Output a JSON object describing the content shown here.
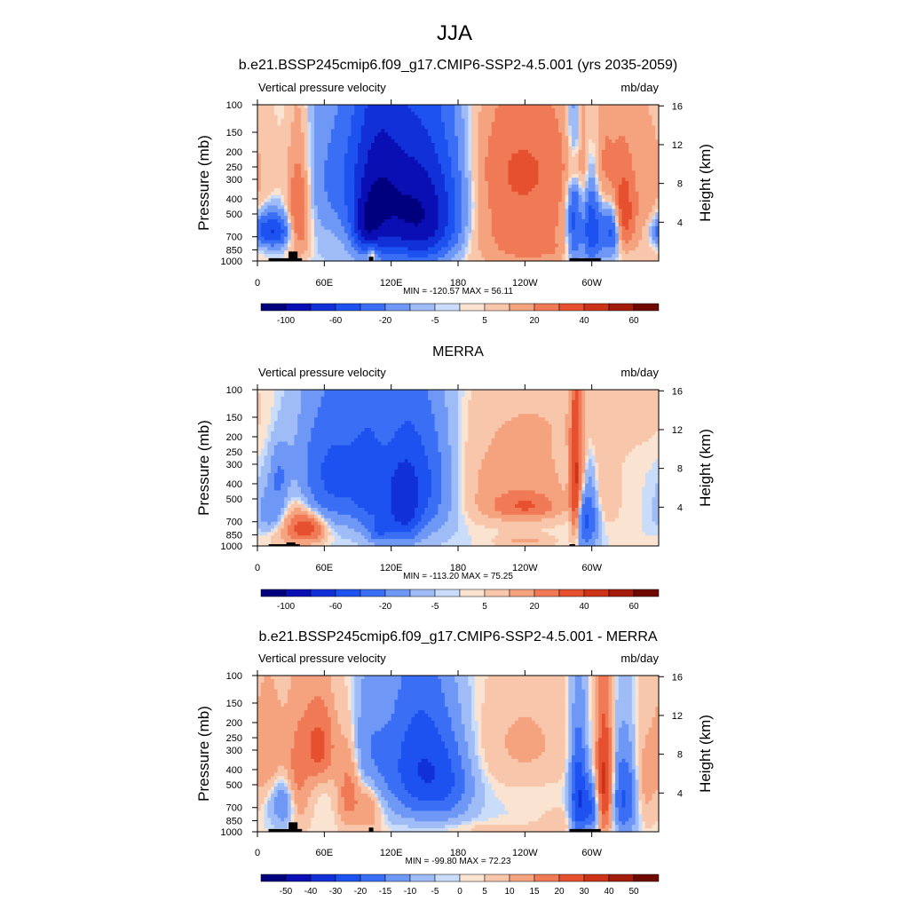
{
  "figure": {
    "season": "JJA",
    "colors": {
      "land": "#000000",
      "frame": "#000000",
      "scale_main": [
        "#00007f",
        "#0a0fb4",
        "#1230d8",
        "#1d52f0",
        "#3a6ff5",
        "#6f98f6",
        "#9fbcf7",
        "#c9dcfa",
        "#fbe3d2",
        "#f8c6ab",
        "#f5a27f",
        "#f17a56",
        "#e6502f",
        "#cc3318",
        "#a41c0c",
        "#6e0800"
      ],
      "scale_diff": [
        "#00007f",
        "#0a0fb4",
        "#1230d8",
        "#1d52f0",
        "#3a6ff5",
        "#6f98f6",
        "#9fbcf7",
        "#c9dcfa",
        "#fbe3d2",
        "#f8c6ab",
        "#f5a27f",
        "#f17a56",
        "#e6502f",
        "#cc3318",
        "#a41c0c",
        "#6e0800"
      ]
    }
  },
  "chart_data": [
    {
      "type": "heatmap",
      "title": "b.e21.BSSP245cmip6.f09_g17.CMIP6-SSP2-4.5.001 (yrs 2035-2059)",
      "left_label": "Vertical pressure velocity",
      "right_label": "mb/day",
      "ylabel": "Pressure (mb)",
      "y2label": "Height (km)",
      "x_ticks": [
        "0",
        "60E",
        "120E",
        "180",
        "120W",
        "60W"
      ],
      "x_tick_lon": [
        0,
        60,
        120,
        180,
        240,
        300
      ],
      "xlim": [
        0,
        360
      ],
      "y_ticks": [
        "100",
        "150",
        "200",
        "250",
        "300",
        "400",
        "500",
        "700",
        "850",
        "1000"
      ],
      "y_tick_values": [
        100,
        150,
        200,
        250,
        300,
        400,
        500,
        700,
        850,
        1000
      ],
      "ylim": [
        100,
        1000
      ],
      "y2_ticks": [
        "16",
        "12",
        "8",
        "4"
      ],
      "y2_tick_values": [
        16,
        12,
        8,
        4
      ],
      "stats": "MIN = -120.57  MAX =  56.11",
      "colorbar_labels": [
        "-100",
        "-60",
        "-20",
        "-5",
        "5",
        "20",
        "40",
        "60"
      ],
      "colorbar_label_slots": [
        1,
        3,
        5,
        7,
        9,
        11,
        13,
        15
      ],
      "color_levels": 16,
      "topography": [
        [
          10,
          40,
          960
        ],
        [
          28,
          36,
          870
        ],
        [
          100,
          104,
          940
        ],
        [
          280,
          308,
          960
        ]
      ],
      "features": [
        {
          "lon": 12,
          "p": 640,
          "dlon": 12,
          "dp": 110,
          "v": -50
        },
        {
          "lon": 37,
          "p": 500,
          "dlon": 7,
          "dp": 260,
          "v": 35
        },
        {
          "lon": 20,
          "p": 250,
          "dlon": 18,
          "dp": 120,
          "v": 3
        },
        {
          "lon": 60,
          "p": 520,
          "dlon": 22,
          "dp": 420,
          "v": -3
        },
        {
          "lon": 90,
          "p": 280,
          "dlon": 30,
          "dp": 200,
          "v": -22
        },
        {
          "lon": 98,
          "p": 600,
          "dlon": 8,
          "dp": 150,
          "v": -45
        },
        {
          "lon": 103,
          "p": 900,
          "dlon": 3,
          "dp": 80,
          "v": 25
        },
        {
          "lon": 108,
          "p": 400,
          "dlon": 14,
          "dp": 320,
          "v": -40
        },
        {
          "lon": 140,
          "p": 450,
          "dlon": 28,
          "dp": 300,
          "v": -70
        },
        {
          "lon": 150,
          "p": 650,
          "dlon": 18,
          "dp": 220,
          "v": -30
        },
        {
          "lon": 168,
          "p": 250,
          "dlon": 24,
          "dp": 180,
          "v": -10
        },
        {
          "lon": 235,
          "p": 500,
          "dlon": 38,
          "dp": 380,
          "v": 26
        },
        {
          "lon": 240,
          "p": 230,
          "dlon": 42,
          "dp": 120,
          "v": 12
        },
        {
          "lon": 250,
          "p": 850,
          "dlon": 20,
          "dp": 80,
          "v": 8
        },
        {
          "lon": 284,
          "p": 500,
          "dlon": 5,
          "dp": 350,
          "v": -35
        },
        {
          "lon": 284,
          "p": 260,
          "dlon": 4,
          "dp": 60,
          "v": 18
        },
        {
          "lon": 292,
          "p": 500,
          "dlon": 4,
          "dp": 320,
          "v": 25
        },
        {
          "lon": 298,
          "p": 600,
          "dlon": 8,
          "dp": 260,
          "v": -55
        },
        {
          "lon": 312,
          "p": 300,
          "dlon": 8,
          "dp": 170,
          "v": 20
        },
        {
          "lon": 318,
          "p": 620,
          "dlon": 6,
          "dp": 180,
          "v": -40
        },
        {
          "lon": 328,
          "p": 500,
          "dlon": 6,
          "dp": 200,
          "v": 35
        },
        {
          "lon": 345,
          "p": 450,
          "dlon": 16,
          "dp": 300,
          "v": 14
        }
      ]
    },
    {
      "type": "heatmap",
      "title": "MERRA",
      "left_label": "Vertical pressure velocity",
      "right_label": "mb/day",
      "ylabel": "Pressure (mb)",
      "y2label": "Height (km)",
      "x_ticks": [
        "0",
        "60E",
        "120E",
        "180",
        "120W",
        "60W"
      ],
      "x_tick_lon": [
        0,
        60,
        120,
        180,
        240,
        300
      ],
      "xlim": [
        0,
        360
      ],
      "y_ticks": [
        "100",
        "150",
        "200",
        "250",
        "300",
        "400",
        "500",
        "700",
        "850",
        "1000"
      ],
      "y_tick_values": [
        100,
        150,
        200,
        250,
        300,
        400,
        500,
        700,
        850,
        1000
      ],
      "ylim": [
        100,
        1000
      ],
      "y2_ticks": [
        "16",
        "12",
        "8",
        "4"
      ],
      "y2_tick_values": [
        16,
        12,
        8,
        4
      ],
      "stats": "MIN = -113.20  MAX =  75.25",
      "colorbar_labels": [
        "-100",
        "-60",
        "-20",
        "-5",
        "5",
        "20",
        "40",
        "60"
      ],
      "colorbar_label_slots": [
        1,
        3,
        5,
        7,
        9,
        11,
        13,
        15
      ],
      "color_levels": 16,
      "topography": [
        [
          10,
          38,
          975
        ],
        [
          26,
          34,
          950
        ],
        [
          280,
          285,
          975
        ]
      ],
      "features": [
        {
          "lon": 15,
          "p": 600,
          "dlon": 10,
          "dp": 140,
          "v": -22
        },
        {
          "lon": 30,
          "p": 680,
          "dlon": 14,
          "dp": 200,
          "v": 18
        },
        {
          "lon": 45,
          "p": 780,
          "dlon": 10,
          "dp": 100,
          "v": 35
        },
        {
          "lon": 20,
          "p": 350,
          "dlon": 6,
          "dp": 100,
          "v": -15
        },
        {
          "lon": 70,
          "p": 350,
          "dlon": 24,
          "dp": 220,
          "v": -35
        },
        {
          "lon": 100,
          "p": 420,
          "dlon": 10,
          "dp": 260,
          "v": -20
        },
        {
          "lon": 140,
          "p": 400,
          "dlon": 22,
          "dp": 260,
          "v": -40
        },
        {
          "lon": 130,
          "p": 600,
          "dlon": 10,
          "dp": 220,
          "v": -35
        },
        {
          "lon": 110,
          "p": 800,
          "dlon": 6,
          "dp": 100,
          "v": -25
        },
        {
          "lon": 230,
          "p": 400,
          "dlon": 40,
          "dp": 200,
          "v": 12
        },
        {
          "lon": 240,
          "p": 560,
          "dlon": 20,
          "dp": 70,
          "v": 24
        },
        {
          "lon": 240,
          "p": 930,
          "dlon": 16,
          "dp": 60,
          "v": 9
        },
        {
          "lon": 285,
          "p": 420,
          "dlon": 3,
          "dp": 300,
          "v": 45
        },
        {
          "lon": 290,
          "p": 350,
          "dlon": 4,
          "dp": 160,
          "v": 18
        },
        {
          "lon": 295,
          "p": 650,
          "dlon": 7,
          "dp": 240,
          "v": -35
        },
        {
          "lon": 310,
          "p": 430,
          "dlon": 10,
          "dp": 200,
          "v": 6
        },
        {
          "lon": 300,
          "p": 140,
          "dlon": 60,
          "dp": 80,
          "v": 4
        }
      ]
    },
    {
      "type": "heatmap",
      "title": "b.e21.BSSP245cmip6.f09_g17.CMIP6-SSP2-4.5.001 - MERRA",
      "left_label": "Vertical pressure velocity",
      "right_label": "mb/day",
      "ylabel": "Pressure (mb)",
      "y2label": "Height (km)",
      "x_ticks": [
        "0",
        "60E",
        "120E",
        "180",
        "120W",
        "60W"
      ],
      "x_tick_lon": [
        0,
        60,
        120,
        180,
        240,
        300
      ],
      "xlim": [
        0,
        360
      ],
      "y_ticks": [
        "100",
        "150",
        "200",
        "250",
        "300",
        "400",
        "500",
        "700",
        "850",
        "1000"
      ],
      "y_tick_values": [
        100,
        150,
        200,
        250,
        300,
        400,
        500,
        700,
        850,
        1000
      ],
      "ylim": [
        100,
        1000
      ],
      "y2_ticks": [
        "16",
        "12",
        "8",
        "4"
      ],
      "y2_tick_values": [
        16,
        12,
        8,
        4
      ],
      "stats": "MIN = -99.80  MAX =  72.23",
      "colorbar_labels": [
        "-50",
        "-40",
        "-30",
        "-20",
        "-15",
        "-10",
        "-5",
        "0",
        "5",
        "10",
        "15",
        "20",
        "30",
        "40",
        "50"
      ],
      "colorbar_label_slots": [
        1,
        2,
        3,
        4,
        5,
        6,
        7,
        8,
        9,
        10,
        11,
        12,
        13,
        14,
        15
      ],
      "color_levels": 16,
      "topography": [
        [
          10,
          40,
          960
        ],
        [
          28,
          36,
          870
        ],
        [
          100,
          104,
          940
        ],
        [
          280,
          308,
          960
        ]
      ],
      "features": [
        {
          "lon": 10,
          "p": 300,
          "dlon": 10,
          "dp": 160,
          "v": 16
        },
        {
          "lon": 55,
          "p": 280,
          "dlon": 10,
          "dp": 120,
          "v": 35
        },
        {
          "lon": 35,
          "p": 500,
          "dlon": 8,
          "dp": 260,
          "v": 22
        },
        {
          "lon": 25,
          "p": 650,
          "dlon": 8,
          "dp": 160,
          "v": -22
        },
        {
          "lon": 82,
          "p": 550,
          "dlon": 7,
          "dp": 220,
          "v": 25
        },
        {
          "lon": 100,
          "p": 650,
          "dlon": 8,
          "dp": 200,
          "v": 18
        },
        {
          "lon": 100,
          "p": 350,
          "dlon": 12,
          "dp": 200,
          "v": -18
        },
        {
          "lon": 145,
          "p": 380,
          "dlon": 20,
          "dp": 240,
          "v": -42
        },
        {
          "lon": 170,
          "p": 500,
          "dlon": 16,
          "dp": 200,
          "v": -20
        },
        {
          "lon": 240,
          "p": 270,
          "dlon": 30,
          "dp": 140,
          "v": 9
        },
        {
          "lon": 270,
          "p": 850,
          "dlon": 12,
          "dp": 100,
          "v": 5
        },
        {
          "lon": 220,
          "p": 950,
          "dlon": 60,
          "dp": 60,
          "v": 3
        },
        {
          "lon": 288,
          "p": 600,
          "dlon": 5,
          "dp": 300,
          "v": -45
        },
        {
          "lon": 300,
          "p": 700,
          "dlon": 6,
          "dp": 180,
          "v": -30
        },
        {
          "lon": 311,
          "p": 500,
          "dlon": 5,
          "dp": 300,
          "v": 55
        },
        {
          "lon": 330,
          "p": 600,
          "dlon": 8,
          "dp": 250,
          "v": -35
        },
        {
          "lon": 345,
          "p": 500,
          "dlon": 10,
          "dp": 250,
          "v": 12
        }
      ]
    }
  ]
}
